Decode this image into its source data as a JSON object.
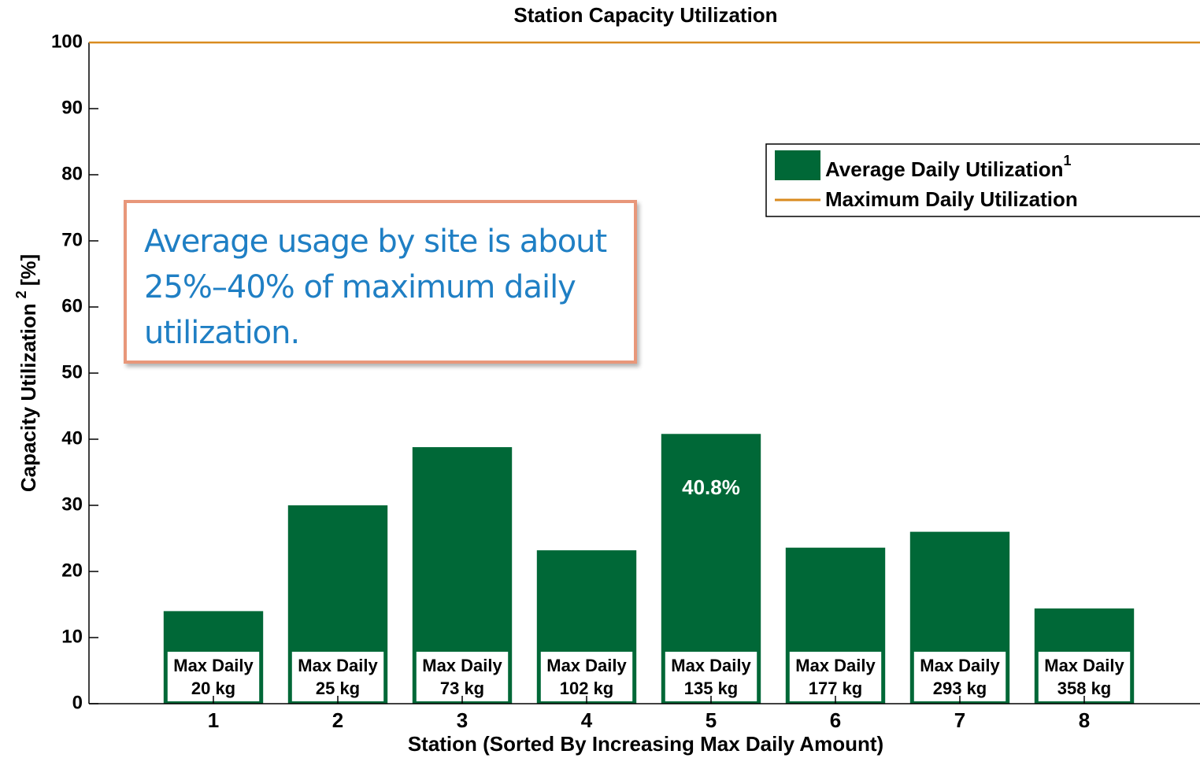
{
  "chart_data": {
    "type": "bar",
    "title": "Station Capacity Utilization",
    "xlabel": "Station (Sorted By Increasing Max Daily Amount)",
    "ylabel": "Capacity Utilization",
    "ylabel_sup": "2",
    "ylabel_unit": "[%]",
    "x": [
      1,
      2,
      3,
      4,
      5,
      6,
      7,
      8
    ],
    "xlim": [
      0,
      9
    ],
    "xticks": [
      1,
      2,
      3,
      4,
      5,
      6,
      7,
      8
    ],
    "ylim": [
      0,
      100
    ],
    "yticks": [
      0,
      10,
      20,
      30,
      40,
      50,
      60,
      70,
      80,
      90,
      100
    ],
    "series": [
      {
        "name": "Average Daily Utilization",
        "note": "1",
        "color": "#006837",
        "values": [
          14.0,
          30.0,
          38.8,
          23.2,
          40.8,
          23.6,
          26.0,
          14.4
        ],
        "value_labels": [
          null,
          null,
          null,
          null,
          "40.8%",
          null,
          null,
          null
        ]
      }
    ],
    "hline": {
      "name": "Maximum Daily Utilization",
      "color": "#d98b1f",
      "value": 100
    },
    "bar_notes": [
      {
        "line1": "Max Daily",
        "line2": "20 kg"
      },
      {
        "line1": "Max Daily",
        "line2": "25 kg"
      },
      {
        "line1": "Max Daily",
        "line2": "73 kg"
      },
      {
        "line1": "Max Daily",
        "line2": "102 kg"
      },
      {
        "line1": "Max Daily",
        "line2": "135 kg"
      },
      {
        "line1": "Max Daily",
        "line2": "177 kg"
      },
      {
        "line1": "Max Daily",
        "line2": "293 kg"
      },
      {
        "line1": "Max Daily",
        "line2": "358 kg"
      }
    ],
    "callout": "Average usage by site is about 25%–40% of maximum daily utilization."
  }
}
